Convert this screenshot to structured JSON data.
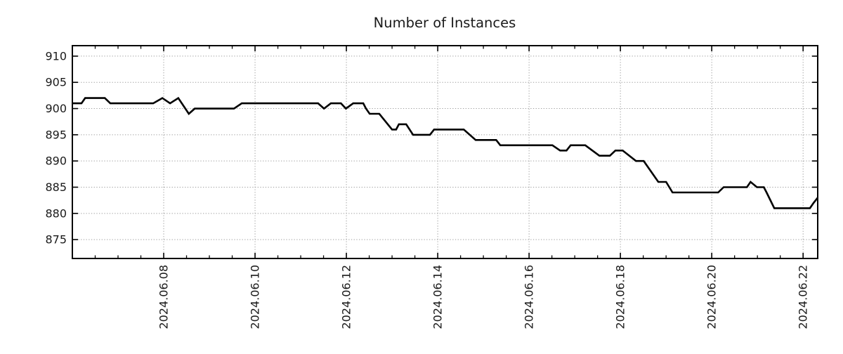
{
  "title": "Number of Instances",
  "colors": {
    "background": "#ffffff",
    "line": "#000000",
    "grid": "#9e9e9e",
    "border": "#000000",
    "text": "#1a1a1a"
  },
  "chart_data": {
    "type": "line",
    "title": "Number of Instances",
    "series_name": "instances",
    "legend": null,
    "grid": {
      "show": true,
      "style": "dotted",
      "color": "#9e9e9e"
    },
    "x_epoch_label": "days since 2024.06.06 00:00",
    "x_range": [
      0,
      16.32
    ],
    "y_range": [
      871.4,
      912
    ],
    "y_ticks": [
      875,
      880,
      885,
      890,
      895,
      900,
      905,
      910
    ],
    "x_major_ticks": [
      {
        "t": 2,
        "label": "2024.06.08"
      },
      {
        "t": 4,
        "label": "2024.06.10"
      },
      {
        "t": 6,
        "label": "2024.06.12"
      },
      {
        "t": 8,
        "label": "2024.06.14"
      },
      {
        "t": 10,
        "label": "2024.06.16"
      },
      {
        "t": 12,
        "label": "2024.06.18"
      },
      {
        "t": 14,
        "label": "2024.06.20"
      },
      {
        "t": 16,
        "label": "2024.06.22"
      }
    ],
    "x_minor_step": 0.5,
    "line_color": "#000000",
    "line_width": 2.6,
    "points": [
      [
        0.0,
        901
      ],
      [
        0.2,
        901
      ],
      [
        0.28,
        902
      ],
      [
        0.71,
        902
      ],
      [
        0.83,
        901
      ],
      [
        1.77,
        901
      ],
      [
        1.97,
        902
      ],
      [
        2.14,
        901
      ],
      [
        2.32,
        902
      ],
      [
        2.55,
        899
      ],
      [
        2.68,
        900
      ],
      [
        3.54,
        900
      ],
      [
        3.71,
        901
      ],
      [
        5.38,
        901
      ],
      [
        5.51,
        900
      ],
      [
        5.66,
        901
      ],
      [
        5.88,
        901
      ],
      [
        5.99,
        900
      ],
      [
        6.15,
        901
      ],
      [
        6.37,
        901
      ],
      [
        6.43,
        900
      ],
      [
        6.51,
        899
      ],
      [
        6.72,
        899
      ],
      [
        7.0,
        896
      ],
      [
        7.09,
        896
      ],
      [
        7.15,
        897
      ],
      [
        7.31,
        897
      ],
      [
        7.46,
        895
      ],
      [
        7.83,
        895
      ],
      [
        7.92,
        896
      ],
      [
        8.57,
        896
      ],
      [
        8.83,
        894
      ],
      [
        9.28,
        894
      ],
      [
        9.37,
        893
      ],
      [
        10.51,
        893
      ],
      [
        10.68,
        892
      ],
      [
        10.82,
        892
      ],
      [
        10.91,
        893
      ],
      [
        11.23,
        893
      ],
      [
        11.54,
        891
      ],
      [
        11.77,
        891
      ],
      [
        11.89,
        892
      ],
      [
        12.05,
        892
      ],
      [
        12.34,
        890
      ],
      [
        12.51,
        890
      ],
      [
        12.83,
        886
      ],
      [
        13.0,
        886
      ],
      [
        13.14,
        884
      ],
      [
        14.14,
        884
      ],
      [
        14.26,
        885
      ],
      [
        14.77,
        885
      ],
      [
        14.85,
        886
      ],
      [
        14.99,
        885
      ],
      [
        15.14,
        885
      ],
      [
        15.2,
        884
      ],
      [
        15.37,
        881
      ],
      [
        16.15,
        881
      ],
      [
        16.23,
        882
      ],
      [
        16.32,
        883
      ]
    ]
  }
}
